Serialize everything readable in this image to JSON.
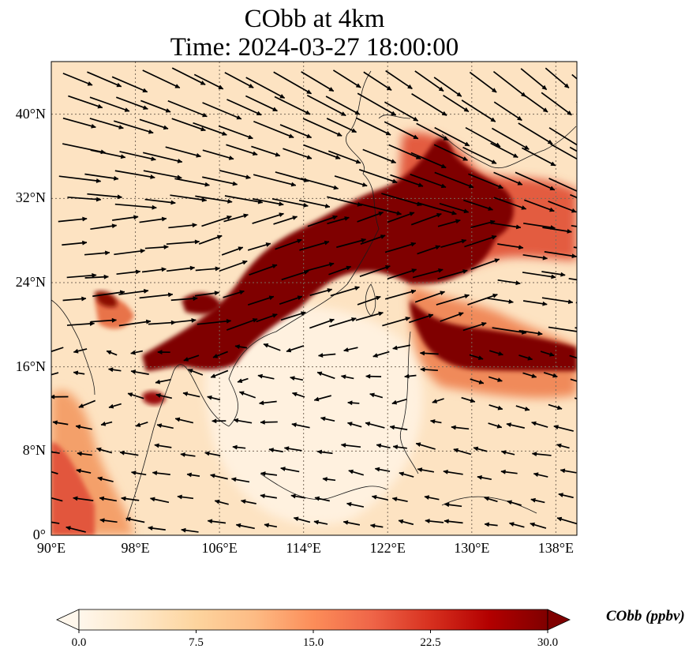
{
  "title": {
    "line1": "CObb at 4km",
    "line2": "Time: 2024-03-27 18:00:00"
  },
  "map": {
    "projection": "PlateCarree",
    "lon_range": [
      90,
      140
    ],
    "lat_range": [
      0,
      45
    ],
    "gridlines": "dotted",
    "lon_ticks": [
      {
        "value": 90,
        "label": "90°E"
      },
      {
        "value": 98,
        "label": "98°E"
      },
      {
        "value": 106,
        "label": "106°E"
      },
      {
        "value": 114,
        "label": "114°E"
      },
      {
        "value": 122,
        "label": "122°E"
      },
      {
        "value": 130,
        "label": "130°E"
      },
      {
        "value": 138,
        "label": "138°E"
      }
    ],
    "lat_ticks": [
      {
        "value": 0,
        "label": "0°"
      },
      {
        "value": 8,
        "label": "8°N"
      },
      {
        "value": 16,
        "label": "16°N"
      },
      {
        "value": 24,
        "label": "24°N"
      },
      {
        "value": 32,
        "label": "32°N"
      },
      {
        "value": 40,
        "label": "40°N"
      }
    ],
    "high_concentration_color": "#7f0000",
    "vector_color": "#000000"
  },
  "colorbar": {
    "label": "CObb (ppbv)",
    "min": 0,
    "max": 30,
    "ticks": [
      {
        "value": 0,
        "label": "0.0"
      },
      {
        "value": 7.5,
        "label": "7.5"
      },
      {
        "value": 15,
        "label": "15.0"
      },
      {
        "value": 22.5,
        "label": "22.5"
      },
      {
        "value": 30,
        "label": "30.0"
      }
    ],
    "extend": "both",
    "colormap": [
      "#fff7ec",
      "#fee8c8",
      "#fdd49e",
      "#fdbb84",
      "#fc8d59",
      "#ef6548",
      "#d7301f",
      "#b30000",
      "#7f0000"
    ]
  }
}
